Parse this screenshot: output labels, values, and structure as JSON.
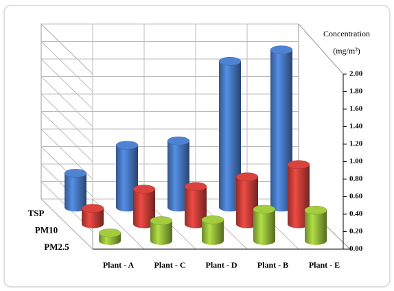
{
  "chart_data": {
    "type": "bar3d",
    "y_label": "Concentration",
    "y_unit": "(mg/m³)",
    "categories": [
      "Plant - A",
      "Plant - C",
      "Plant - D",
      "Plant - B",
      "Plant - E"
    ],
    "series": [
      {
        "name": "TSP",
        "color": "#4a7cc9",
        "values": [
          0.39,
          0.71,
          0.76,
          1.67,
          1.8
        ]
      },
      {
        "name": "PM10",
        "color": "#d0403a",
        "values": [
          0.18,
          0.4,
          0.43,
          0.54,
          0.68
        ]
      },
      {
        "name": "PM2.5",
        "color": "#9bc23c",
        "values": [
          0.09,
          0.23,
          0.24,
          0.36,
          0.35
        ]
      }
    ],
    "ylim": [
      0,
      2
    ],
    "yticks": [
      {
        "value": 0,
        "label": "0.00"
      },
      {
        "value": 0.2,
        "label": "0.20"
      },
      {
        "value": 0.4,
        "label": "0.40"
      },
      {
        "value": 0.6,
        "label": "0.60"
      },
      {
        "value": 0.8,
        "label": "0.80"
      },
      {
        "value": 1,
        "label": "1.00"
      },
      {
        "value": 1.2,
        "label": "1.20"
      },
      {
        "value": 1.4,
        "label": "1.40"
      },
      {
        "value": 1.6,
        "label": "1.60"
      },
      {
        "value": 1.8,
        "label": "1.80"
      },
      {
        "value": 2,
        "label": "2.00"
      }
    ],
    "grid": true
  }
}
